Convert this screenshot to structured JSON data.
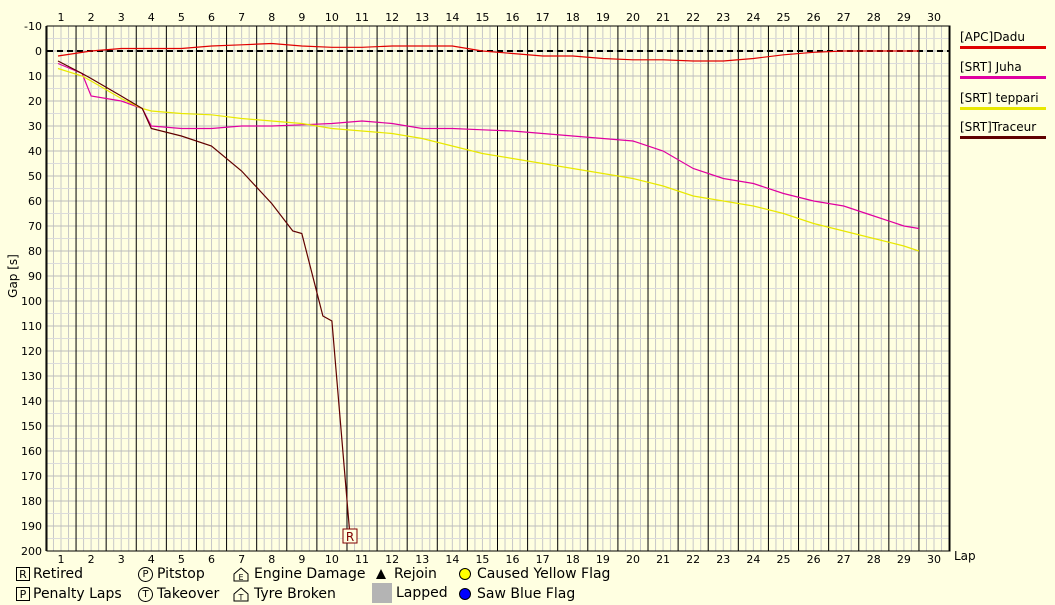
{
  "chart_data": {
    "type": "line",
    "ylabel": "Gap [s]",
    "xlabel": "Lap",
    "x_ticks": [
      "1",
      "2",
      "3",
      "4",
      "5",
      "6",
      "7",
      "8",
      "9",
      "10",
      "11",
      "12",
      "13",
      "14",
      "15",
      "16",
      "17",
      "18",
      "19",
      "20",
      "21",
      "22",
      "23",
      "24",
      "25",
      "26",
      "27",
      "28",
      "29",
      "30"
    ],
    "y_ticks": [
      "-10",
      "0",
      "10",
      "20",
      "30",
      "40",
      "50",
      "60",
      "70",
      "80",
      "90",
      "100",
      "110",
      "120",
      "130",
      "140",
      "150",
      "160",
      "170",
      "180",
      "190",
      "200"
    ],
    "xlim": [
      0.5,
      30.5
    ],
    "ylim": [
      -10,
      200
    ],
    "y_inverted": true,
    "grid": true,
    "series": [
      {
        "name": "[APC]Dadu",
        "color": "#e00000",
        "points": [
          [
            0.9,
            2
          ],
          [
            2,
            0
          ],
          [
            3,
            -1
          ],
          [
            4,
            -1
          ],
          [
            5,
            -1
          ],
          [
            6,
            -2
          ],
          [
            7,
            -2.5
          ],
          [
            8,
            -3
          ],
          [
            9,
            -2
          ],
          [
            10,
            -1.5
          ],
          [
            11,
            -1.5
          ],
          [
            12,
            -2
          ],
          [
            13,
            -2
          ],
          [
            14,
            -2
          ],
          [
            15,
            0
          ],
          [
            16,
            1
          ],
          [
            17,
            2
          ],
          [
            18,
            2
          ],
          [
            19,
            3
          ],
          [
            20,
            3.5
          ],
          [
            21,
            3.5
          ],
          [
            22,
            4
          ],
          [
            23,
            4
          ],
          [
            24,
            3
          ],
          [
            25,
            1.5
          ],
          [
            26,
            0.5
          ],
          [
            27,
            0
          ],
          [
            28,
            0
          ],
          [
            29,
            0
          ],
          [
            29.5,
            0
          ]
        ]
      },
      {
        "name": "[SRT] Juha",
        "color": "#e000a0",
        "points": [
          [
            0.9,
            5
          ],
          [
            1.7,
            9
          ],
          [
            2,
            18
          ],
          [
            3,
            20
          ],
          [
            3.7,
            23
          ],
          [
            4,
            30
          ],
          [
            5,
            31
          ],
          [
            6,
            31
          ],
          [
            7,
            30
          ],
          [
            8,
            30
          ],
          [
            9,
            29.5
          ],
          [
            10,
            29
          ],
          [
            11,
            28
          ],
          [
            12,
            29
          ],
          [
            13,
            31
          ],
          [
            14,
            31
          ],
          [
            15,
            31.5
          ],
          [
            16,
            32
          ],
          [
            17,
            33
          ],
          [
            18,
            34
          ],
          [
            19,
            35
          ],
          [
            20,
            36
          ],
          [
            21,
            40
          ],
          [
            22,
            47
          ],
          [
            23,
            51
          ],
          [
            24,
            53
          ],
          [
            25,
            57
          ],
          [
            26,
            60
          ],
          [
            27,
            62
          ],
          [
            28,
            66
          ],
          [
            29,
            70
          ],
          [
            29.5,
            71
          ]
        ]
      },
      {
        "name": "[SRT] teppari",
        "color": "#e8e800",
        "points": [
          [
            0.9,
            7
          ],
          [
            1.7,
            10
          ],
          [
            2,
            12
          ],
          [
            3,
            19
          ],
          [
            3.7,
            23
          ],
          [
            4,
            24
          ],
          [
            5,
            25
          ],
          [
            6,
            25.5
          ],
          [
            7,
            27
          ],
          [
            8,
            28
          ],
          [
            9,
            29
          ],
          [
            10,
            31
          ],
          [
            11,
            32
          ],
          [
            12,
            33
          ],
          [
            13,
            35
          ],
          [
            14,
            38
          ],
          [
            15,
            41
          ],
          [
            16,
            43
          ],
          [
            17,
            45
          ],
          [
            18,
            47
          ],
          [
            19,
            49
          ],
          [
            20,
            51
          ],
          [
            21,
            54
          ],
          [
            22,
            58
          ],
          [
            23,
            60
          ],
          [
            24,
            62
          ],
          [
            25,
            65
          ],
          [
            26,
            69
          ],
          [
            27,
            72
          ],
          [
            28,
            75
          ],
          [
            29,
            78
          ],
          [
            29.5,
            80
          ]
        ]
      },
      {
        "name": "[SRT]Traceur",
        "color": "#600000",
        "points": [
          [
            0.9,
            4
          ],
          [
            1.7,
            9
          ],
          [
            2,
            11
          ],
          [
            3,
            18
          ],
          [
            3.7,
            23
          ],
          [
            4,
            31
          ],
          [
            5,
            34
          ],
          [
            6,
            38
          ],
          [
            7,
            48
          ],
          [
            8,
            61
          ],
          [
            8.7,
            72
          ],
          [
            9,
            73
          ],
          [
            9.7,
            106
          ],
          [
            10,
            108
          ],
          [
            10.6,
            194
          ]
        ]
      }
    ],
    "annotations": [
      {
        "label": "R",
        "x": 10.6,
        "y": 194
      }
    ]
  },
  "legend": {
    "retired": {
      "icon": "R",
      "label": "Retired"
    },
    "penalty": {
      "icon": "P",
      "label": "Penalty Laps"
    },
    "pitstop": {
      "icon": "P",
      "label": "Pitstop"
    },
    "takeover": {
      "icon": "T",
      "label": "Takeover"
    },
    "engine": {
      "icon": "E",
      "label": "Engine Damage"
    },
    "tyre": {
      "icon": "T",
      "label": "Tyre Broken"
    },
    "rejoin": {
      "label": "Rejoin"
    },
    "lapped": {
      "label": "Lapped"
    },
    "yellow": {
      "label": "Caused Yellow Flag",
      "color": "#ffff00"
    },
    "blue": {
      "label": "Saw Blue Flag",
      "color": "#0000ff"
    }
  }
}
